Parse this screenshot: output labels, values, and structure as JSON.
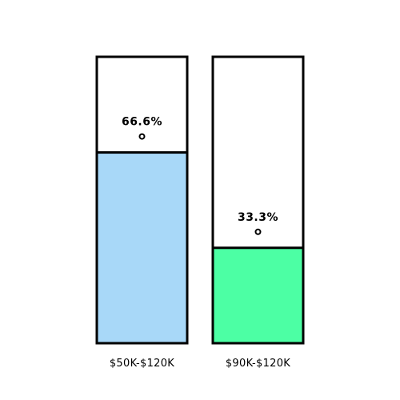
{
  "chart_data": {
    "type": "bar",
    "categories": [
      "$50K-$120K",
      "$90K-$120K"
    ],
    "values": [
      66.6,
      33.3
    ],
    "value_labels": [
      "66.6%",
      "33.3%"
    ],
    "ylim": [
      0,
      100
    ],
    "colors": [
      "#a8d8f8",
      "#4cffa4"
    ],
    "outline_color": "#000000",
    "grid": false
  }
}
